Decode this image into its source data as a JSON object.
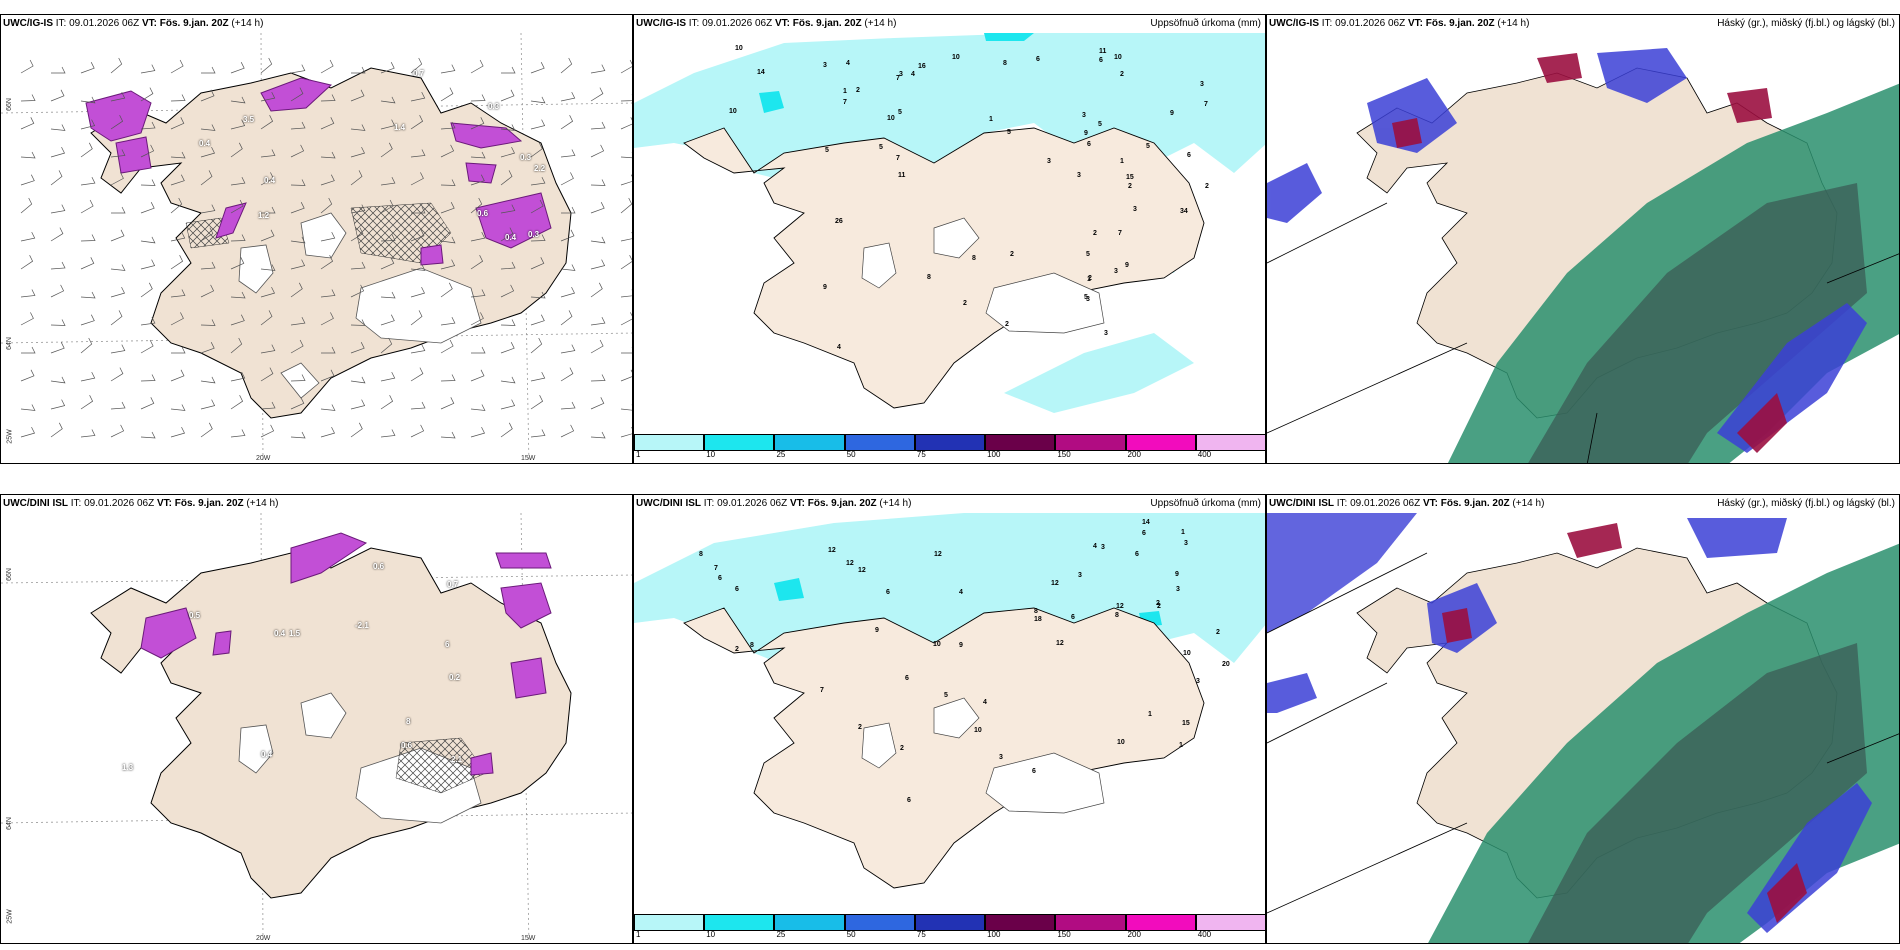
{
  "colors": {
    "land": "#f0e2d3",
    "precip_light": "#b7f6f8",
    "precip_mid": "#1de6ee",
    "cloud_green": "#2a8f6d",
    "cloud_dark": "#3b5c55",
    "cloud_blue": "#3b3fd6",
    "cloud_red": "#9b1040",
    "snow_mag": "#c24fd6"
  },
  "top": {
    "left": {
      "model": "UWC/IG-IS",
      "it": " IT: 09.01.2026 06Z ",
      "vt_label": "VT:",
      "vt_value": "Fös. 9.jan. 20Z",
      "lead": " (+14 h)"
    },
    "mid": {
      "model": "UWC/IG-IS",
      "it": " IT: 09.01.2026 06Z ",
      "vt_label": "VT:",
      "vt_value": "Fös. 9.jan. 20Z",
      "lead": " (+14 h)",
      "title": "Uppsöfnuð úrkoma (mm)"
    },
    "right": {
      "model": "UWC/IG-IS",
      "it": " IT: 09.01.2026 06Z ",
      "vt_label": "VT:",
      "vt_value": "Fös. 9.jan. 20Z",
      "lead": " (+14 h)",
      "title": "Háský (gr.), miðský (fj.bl.) og lágský (bl.)"
    }
  },
  "bottom": {
    "left": {
      "model": "UWC/DINI ISL",
      "it": " IT: 09.01.2026 06Z ",
      "vt_label": "VT:",
      "vt_value": "Fös. 9.jan. 20Z",
      "lead": " (+14 h)"
    },
    "mid": {
      "model": "UWC/DINI ISL",
      "it": " IT: 09.01.2026 06Z ",
      "vt_label": "VT:",
      "vt_value": "Fös. 9.jan. 20Z",
      "lead": " (+14 h)",
      "title": "Uppsöfnuð úrkoma (mm)"
    },
    "right": {
      "model": "UWC/DINI ISL",
      "it": " IT: 09.01.2026 06Z ",
      "vt_label": "VT:",
      "vt_value": "Fös. 9.jan. 20Z",
      "lead": " (+14 h)",
      "title": "Háský (gr.), miðský (fj.bl.) og lágský (bl.)"
    }
  },
  "grid_labels": {
    "lat66": "66N",
    "lat64": "64N",
    "lon25": "25W",
    "lon20": "20W",
    "lon15": "15W"
  },
  "colorbar": {
    "ticks": [
      "1",
      "10",
      "25",
      "50",
      "75",
      "100",
      "150",
      "200",
      "400"
    ],
    "colors": [
      "#b7f6f8",
      "#1de6ee",
      "#18bde8",
      "#2e67e0",
      "#2232b4",
      "#6a0049",
      "#b10c82",
      "#f20cbd",
      "#f0b5f0"
    ]
  },
  "top_precip_labels": [
    "10",
    "5",
    "5",
    "5",
    "10",
    "8",
    "16",
    "15",
    "11",
    "10",
    "3",
    "3",
    "4",
    "2",
    "2",
    "4",
    "5",
    "14",
    "10",
    "5",
    "7",
    "7",
    "7",
    "6",
    "3",
    "1",
    "1",
    "1",
    "3",
    "3",
    "2",
    "1",
    "2",
    "2",
    "10",
    "34",
    "7",
    "6",
    "3",
    "3",
    "3",
    "9",
    "7",
    "11",
    "6",
    "5",
    "6",
    "9",
    "9",
    "5",
    "26",
    "9",
    "8",
    "8",
    "5",
    "3",
    "3",
    "2",
    "2",
    "2",
    "4",
    "2"
  ],
  "bottom_precip_labels": [
    "9",
    "8",
    "6",
    "12",
    "18",
    "12",
    "6",
    "6",
    "2",
    "9",
    "6",
    "4",
    "12",
    "14",
    "7",
    "12",
    "8",
    "8",
    "12",
    "12",
    "8",
    "12",
    "10",
    "6",
    "9",
    "1",
    "1",
    "1",
    "2",
    "3",
    "3",
    "4",
    "6",
    "20",
    "10",
    "10",
    "15",
    "3",
    "3",
    "3",
    "2",
    "2",
    "3",
    "2",
    "4",
    "2",
    "6",
    "6",
    "5",
    "10",
    "7",
    "6"
  ],
  "top_snow_labels": [
    "3.5",
    "0.3",
    "1.4",
    "2.2",
    "0.4",
    "0.3",
    "1.2",
    "0.7",
    "0.4",
    "0.3",
    "0.4",
    "0.6"
  ],
  "bottom_snow_labels": [
    "6",
    "8",
    "1.3",
    "2.1",
    "0.5",
    "0.4",
    "0.6",
    "0.4",
    "0.7",
    "0.2",
    "-2.1",
    "0.6",
    "1.5"
  ]
}
